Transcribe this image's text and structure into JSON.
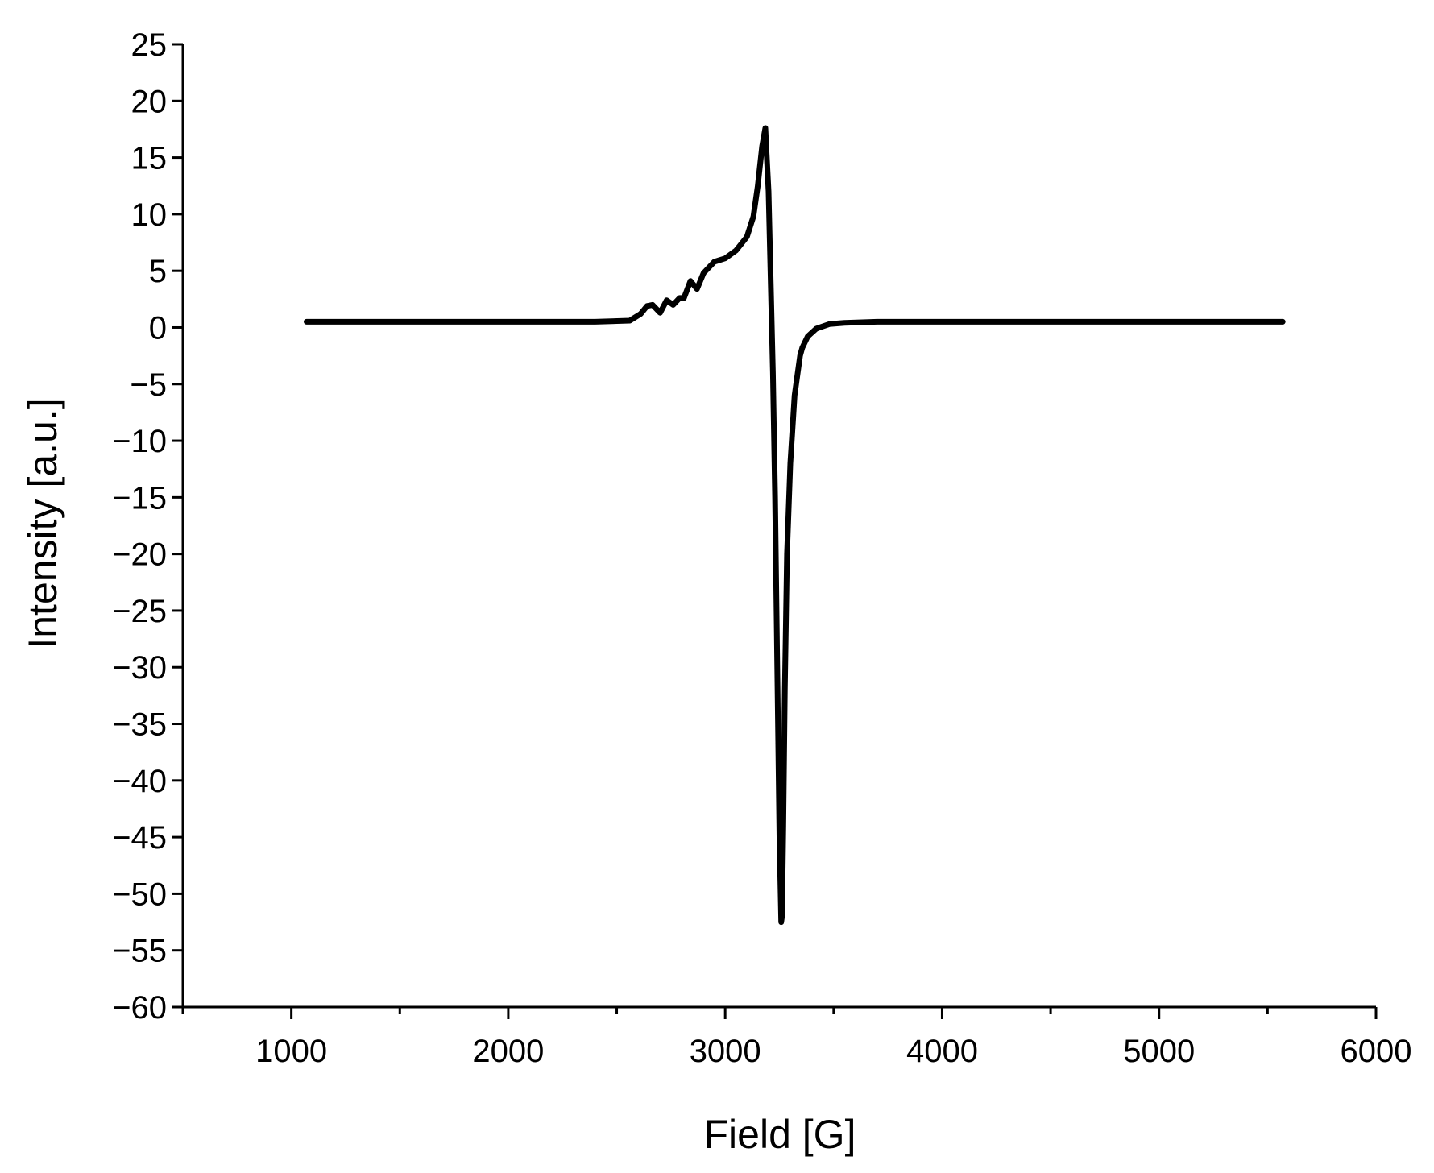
{
  "chart_data": {
    "type": "line",
    "title": "",
    "xlabel": "Field [G]",
    "ylabel": "Intensity [a.u.]",
    "xlim": [
      500,
      6000
    ],
    "ylim": [
      -60,
      25
    ],
    "x_ticks": [
      1000,
      2000,
      3000,
      4000,
      5000,
      6000
    ],
    "x_minor_ticks": [
      500,
      1500,
      2500,
      3500,
      4500,
      5500
    ],
    "y_ticks": [
      25,
      20,
      15,
      10,
      5,
      0,
      -5,
      -10,
      -15,
      -20,
      -25,
      -30,
      -35,
      -40,
      -45,
      -50,
      -55,
      -60
    ],
    "grid": false,
    "legend": "none",
    "line_color": "#000000",
    "series": [
      {
        "x": [
          1070,
          1500,
          2000,
          2400,
          2560,
          2610,
          2640,
          2665,
          2700,
          2730,
          2760,
          2790,
          2810,
          2840,
          2870,
          2900,
          2950,
          3000,
          3050,
          3100,
          3130,
          3150,
          3170,
          3185,
          3200,
          3210,
          3220,
          3230,
          3240,
          3250,
          3258,
          3262,
          3268,
          3275,
          3285,
          3300,
          3320,
          3345,
          3355,
          3380,
          3420,
          3480,
          3550,
          3700,
          4000,
          4500,
          5000,
          5570
        ],
        "y": [
          0.5,
          0.5,
          0.5,
          0.5,
          0.6,
          1.2,
          1.9,
          2.0,
          1.3,
          2.4,
          2.0,
          2.6,
          2.6,
          4.1,
          3.4,
          4.8,
          5.8,
          6.1,
          6.8,
          8.0,
          9.8,
          12.5,
          16.0,
          17.6,
          12.0,
          4.0,
          -4.0,
          -15.0,
          -30.0,
          -45.0,
          -52.5,
          -52.0,
          -44.0,
          -32.0,
          -20.0,
          -12.0,
          -6.0,
          -2.5,
          -1.8,
          -0.8,
          -0.1,
          0.3,
          0.4,
          0.5,
          0.5,
          0.5,
          0.5,
          0.5
        ]
      }
    ]
  }
}
